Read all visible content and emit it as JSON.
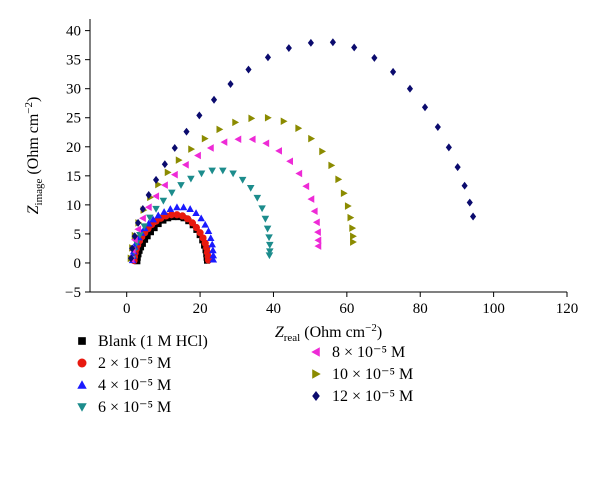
{
  "chart_data": {
    "type": "scatter",
    "title": "",
    "xlabel": {
      "main": "Z",
      "sub": "real",
      "unit_prefix": "(Ohm cm",
      "unit_sup": "−2",
      "unit_suffix": ")"
    },
    "ylabel": {
      "main": "Z",
      "sub": "image",
      "unit_prefix": "(Ohm cm",
      "unit_sup": "−2",
      "unit_suffix": ")"
    },
    "xlim": [
      -10,
      120
    ],
    "ylim": [
      -5,
      42
    ],
    "xticks": [
      0,
      20,
      40,
      60,
      80,
      100,
      120
    ],
    "yticks": [
      -5,
      0,
      5,
      10,
      15,
      20,
      25,
      30,
      35,
      40
    ],
    "grid": false,
    "legend_position": "bottom",
    "series": [
      {
        "name": "Blank (1 M HCl)",
        "marker": "square",
        "color": "#000000",
        "points": [
          [
            2.9,
            0.3
          ],
          [
            3.0,
            0.9
          ],
          [
            3.2,
            1.5
          ],
          [
            3.5,
            2.1
          ],
          [
            3.9,
            2.7
          ],
          [
            4.4,
            3.3
          ],
          [
            5.0,
            4.0
          ],
          [
            5.7,
            4.6
          ],
          [
            6.6,
            5.3
          ],
          [
            7.6,
            6.0
          ],
          [
            8.7,
            6.7
          ],
          [
            10.0,
            7.3
          ],
          [
            11.3,
            7.7
          ],
          [
            12.7,
            7.9
          ],
          [
            14.1,
            7.9
          ],
          [
            15.5,
            7.7
          ],
          [
            16.8,
            7.2
          ],
          [
            18.0,
            6.5
          ],
          [
            19.0,
            5.7
          ],
          [
            19.9,
            4.8
          ],
          [
            20.6,
            3.9
          ],
          [
            21.1,
            3.0
          ],
          [
            21.5,
            2.2
          ],
          [
            21.7,
            1.5
          ],
          [
            21.8,
            0.9
          ],
          [
            21.9,
            0.4
          ]
        ]
      },
      {
        "name": "2 × 10⁻⁵ M",
        "marker": "circle",
        "color": "#e8190f",
        "points": [
          [
            2.0,
            0.4
          ],
          [
            2.1,
            1.0
          ],
          [
            2.3,
            1.7
          ],
          [
            2.6,
            2.4
          ],
          [
            3.0,
            3.1
          ],
          [
            3.5,
            3.8
          ],
          [
            4.1,
            4.5
          ],
          [
            4.9,
            5.2
          ],
          [
            5.8,
            5.9
          ],
          [
            6.8,
            6.6
          ],
          [
            8.0,
            7.2
          ],
          [
            9.3,
            7.7
          ],
          [
            10.7,
            8.1
          ],
          [
            12.2,
            8.3
          ],
          [
            13.7,
            8.3
          ],
          [
            15.2,
            8.1
          ],
          [
            16.6,
            7.6
          ],
          [
            17.9,
            6.9
          ],
          [
            19.0,
            6.1
          ],
          [
            20.0,
            5.2
          ],
          [
            20.8,
            4.3
          ],
          [
            21.4,
            3.4
          ],
          [
            21.8,
            2.6
          ],
          [
            22.0,
            1.8
          ],
          [
            22.2,
            1.1
          ],
          [
            22.3,
            0.5
          ]
        ]
      },
      {
        "name": "4 × 10⁻⁵ M",
        "marker": "triangle-up",
        "color": "#1a1aff",
        "points": [
          [
            1.6,
            0.5
          ],
          [
            1.7,
            1.2
          ],
          [
            1.9,
            2.0
          ],
          [
            2.2,
            2.8
          ],
          [
            2.7,
            3.6
          ],
          [
            3.3,
            4.4
          ],
          [
            4.0,
            5.2
          ],
          [
            4.9,
            6.0
          ],
          [
            6.0,
            6.8
          ],
          [
            7.2,
            7.5
          ],
          [
            8.6,
            8.2
          ],
          [
            10.2,
            8.8
          ],
          [
            11.9,
            9.3
          ],
          [
            13.7,
            9.6
          ],
          [
            15.5,
            9.6
          ],
          [
            17.3,
            9.3
          ],
          [
            18.9,
            8.6
          ],
          [
            20.3,
            7.7
          ],
          [
            21.4,
            6.6
          ],
          [
            22.3,
            5.5
          ],
          [
            22.9,
            4.3
          ],
          [
            23.3,
            3.2
          ],
          [
            23.5,
            2.2
          ],
          [
            23.6,
            1.3
          ],
          [
            23.6,
            0.6
          ]
        ]
      },
      {
        "name": "6 × 10⁻⁵ M",
        "marker": "triangle-down",
        "color": "#1c8c8c",
        "points": [
          [
            1.6,
            0.7
          ],
          [
            2.0,
            2.0
          ],
          [
            2.7,
            3.4
          ],
          [
            3.6,
            4.8
          ],
          [
            4.8,
            6.3
          ],
          [
            6.3,
            7.8
          ],
          [
            8.0,
            9.3
          ],
          [
            10.0,
            10.7
          ],
          [
            12.3,
            12.1
          ],
          [
            14.8,
            13.4
          ],
          [
            17.5,
            14.5
          ],
          [
            20.4,
            15.4
          ],
          [
            23.3,
            15.9
          ],
          [
            26.2,
            15.9
          ],
          [
            29.0,
            15.4
          ],
          [
            31.6,
            14.3
          ],
          [
            33.8,
            12.9
          ],
          [
            35.6,
            11.2
          ],
          [
            36.9,
            9.4
          ],
          [
            37.8,
            7.6
          ],
          [
            38.4,
            5.9
          ],
          [
            38.8,
            4.4
          ],
          [
            39.0,
            3.1
          ],
          [
            39.0,
            2.0
          ],
          [
            38.9,
            1.3
          ]
        ]
      },
      {
        "name": "8 × 10⁻⁵ M",
        "marker": "triangle-left",
        "color": "#ee2ad6",
        "points": [
          [
            1.3,
            0.6
          ],
          [
            1.6,
            2.2
          ],
          [
            2.2,
            4.0
          ],
          [
            3.1,
            5.8
          ],
          [
            4.4,
            7.7
          ],
          [
            6.0,
            9.6
          ],
          [
            8.0,
            11.5
          ],
          [
            10.4,
            13.4
          ],
          [
            13.1,
            15.2
          ],
          [
            16.1,
            16.9
          ],
          [
            19.4,
            18.5
          ],
          [
            22.9,
            19.8
          ],
          [
            26.6,
            20.8
          ],
          [
            30.4,
            21.3
          ],
          [
            34.3,
            21.3
          ],
          [
            38.0,
            20.6
          ],
          [
            41.5,
            19.3
          ],
          [
            44.5,
            17.5
          ],
          [
            47.0,
            15.4
          ],
          [
            48.9,
            13.2
          ],
          [
            50.3,
            11.0
          ],
          [
            51.2,
            8.9
          ],
          [
            51.8,
            7.0
          ],
          [
            52.1,
            5.3
          ],
          [
            52.2,
            3.9
          ],
          [
            52.2,
            2.9
          ]
        ]
      },
      {
        "name": "10 × 10⁻⁵ M",
        "marker": "triangle-right",
        "color": "#8b8b00",
        "points": [
          [
            1.1,
            0.8
          ],
          [
            1.5,
            2.6
          ],
          [
            2.2,
            4.7
          ],
          [
            3.2,
            6.9
          ],
          [
            4.6,
            9.1
          ],
          [
            6.4,
            11.3
          ],
          [
            8.6,
            13.5
          ],
          [
            11.2,
            15.6
          ],
          [
            14.2,
            17.7
          ],
          [
            17.6,
            19.6
          ],
          [
            21.3,
            21.4
          ],
          [
            25.3,
            23.0
          ],
          [
            29.6,
            24.2
          ],
          [
            34.0,
            24.9
          ],
          [
            38.5,
            25.0
          ],
          [
            42.8,
            24.4
          ],
          [
            46.8,
            23.2
          ],
          [
            50.3,
            21.4
          ],
          [
            53.3,
            19.2
          ],
          [
            55.8,
            16.8
          ],
          [
            57.7,
            14.4
          ],
          [
            59.2,
            12.0
          ],
          [
            60.3,
            9.8
          ],
          [
            61.0,
            7.8
          ],
          [
            61.5,
            6.0
          ],
          [
            61.7,
            4.6
          ],
          [
            61.7,
            3.6
          ]
        ]
      },
      {
        "name": "12 × 10⁻⁵ M",
        "marker": "diamond",
        "color": "#0b0b6e",
        "points": [
          [
            1.2,
            0.8
          ],
          [
            1.5,
            2.5
          ],
          [
            2.2,
            4.6
          ],
          [
            3.1,
            6.9
          ],
          [
            4.4,
            9.3
          ],
          [
            6.0,
            11.7
          ],
          [
            8.0,
            14.3
          ],
          [
            10.4,
            17.0
          ],
          [
            13.1,
            19.8
          ],
          [
            16.3,
            22.6
          ],
          [
            19.8,
            25.4
          ],
          [
            23.8,
            28.1
          ],
          [
            28.3,
            30.8
          ],
          [
            33.2,
            33.3
          ],
          [
            38.5,
            35.4
          ],
          [
            44.2,
            37.0
          ],
          [
            50.2,
            37.9
          ],
          [
            56.2,
            38.0
          ],
          [
            62.0,
            37.1
          ],
          [
            67.5,
            35.3
          ],
          [
            72.6,
            32.9
          ],
          [
            77.2,
            30.0
          ],
          [
            81.3,
            26.8
          ],
          [
            84.8,
            23.4
          ],
          [
            87.8,
            19.9
          ],
          [
            90.2,
            16.5
          ],
          [
            92.1,
            13.3
          ],
          [
            93.5,
            10.4
          ],
          [
            94.4,
            8.0
          ]
        ]
      }
    ]
  }
}
